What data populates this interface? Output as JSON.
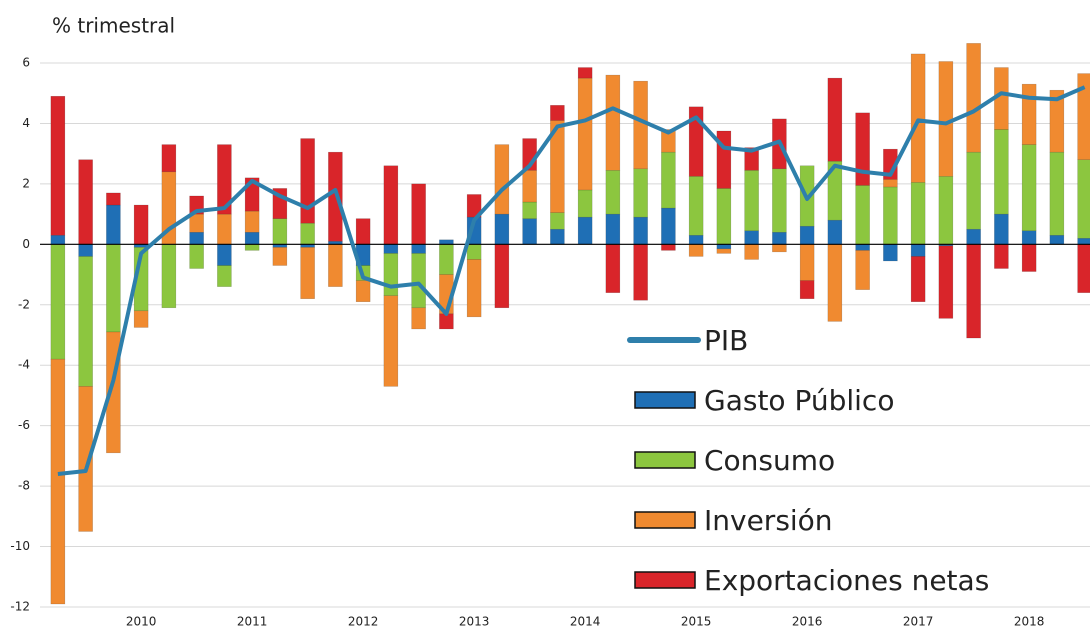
{
  "chart_data": {
    "type": "bar",
    "stacked": true,
    "title": "% trimestral",
    "categories": [
      null,
      null,
      null,
      "2010",
      null,
      null,
      null,
      "2011",
      null,
      null,
      null,
      "2012",
      null,
      null,
      null,
      "2013",
      null,
      null,
      null,
      "2014",
      null,
      null,
      null,
      "2015",
      null,
      null,
      null,
      "2016",
      null,
      null,
      null,
      "2017",
      null,
      null,
      null,
      "2018",
      null,
      null
    ],
    "series": [
      {
        "name": "Gasto Público",
        "color": "#1f6fb5",
        "values": [
          0.3,
          -0.4,
          1.3,
          -0.1,
          0.0,
          0.4,
          -0.7,
          0.4,
          -0.1,
          -0.1,
          0.1,
          -0.7,
          -0.3,
          -0.3,
          0.15,
          0.9,
          1.0,
          0.85,
          0.5,
          0.9,
          1.0,
          0.9,
          1.2,
          0.3,
          -0.15,
          0.45,
          0.4,
          0.6,
          0.8,
          -0.2,
          -0.55,
          -0.4,
          -0.05,
          0.5,
          1.0,
          0.45,
          0.3,
          0.2
        ]
      },
      {
        "name": "Consumo",
        "color": "#8cc63f",
        "values": [
          -3.8,
          -4.3,
          -2.9,
          -2.1,
          -2.1,
          -0.8,
          -0.7,
          -0.2,
          0.85,
          0.7,
          0.0,
          -0.5,
          -1.4,
          -1.8,
          -1.0,
          -0.5,
          0.0,
          0.55,
          0.55,
          0.9,
          1.45,
          1.6,
          1.85,
          1.95,
          1.85,
          2.0,
          2.1,
          2.0,
          1.95,
          1.95,
          1.9,
          2.05,
          2.25,
          2.55,
          2.8,
          2.85,
          2.75,
          2.6
        ]
      },
      {
        "name": "Inversión",
        "color": "#f08a30",
        "values": [
          -8.1,
          -4.8,
          -4.0,
          -0.55,
          2.4,
          0.6,
          1.0,
          0.7,
          -0.6,
          -1.7,
          -1.4,
          -0.7,
          -3.0,
          -0.7,
          -1.3,
          -1.9,
          2.3,
          1.05,
          3.05,
          3.7,
          3.15,
          2.9,
          0.75,
          -0.4,
          -0.15,
          -0.5,
          -0.25,
          -1.2,
          -2.55,
          -1.3,
          0.25,
          4.25,
          3.8,
          3.6,
          2.05,
          2.0,
          2.05,
          2.85
        ]
      },
      {
        "name": "Exportaciones netas",
        "color": "#d9252a",
        "values": [
          4.6,
          2.8,
          0.4,
          1.3,
          0.9,
          0.6,
          2.3,
          1.1,
          1.0,
          2.8,
          2.95,
          0.85,
          2.6,
          2.0,
          -0.5,
          0.75,
          -2.1,
          1.05,
          0.5,
          0.35,
          -1.6,
          -1.85,
          -0.2,
          2.3,
          1.9,
          0.75,
          1.65,
          -0.6,
          2.75,
          2.4,
          1.0,
          -1.5,
          -2.4,
          -3.1,
          -0.8,
          -0.9,
          0.0,
          -1.6
        ]
      },
      {
        "name": "PIB",
        "type": "line",
        "color": "#2e7fab",
        "values": [
          -7.6,
          -7.5,
          -4.5,
          -0.3,
          0.5,
          1.1,
          1.2,
          2.1,
          1.6,
          1.2,
          1.8,
          -1.1,
          -1.4,
          -1.3,
          -2.3,
          0.8,
          1.8,
          2.6,
          3.9,
          4.1,
          4.5,
          4.1,
          3.7,
          4.2,
          3.2,
          3.1,
          3.4,
          1.5,
          2.6,
          2.4,
          2.3,
          4.1,
          4.0,
          4.4,
          5.0,
          4.85,
          4.8,
          5.2
        ]
      }
    ],
    "ylim": [
      -12,
      6
    ],
    "yticks": [
      6,
      4,
      2,
      0,
      -2,
      -4,
      -6,
      -8,
      -10,
      -12
    ],
    "grid": true
  }
}
